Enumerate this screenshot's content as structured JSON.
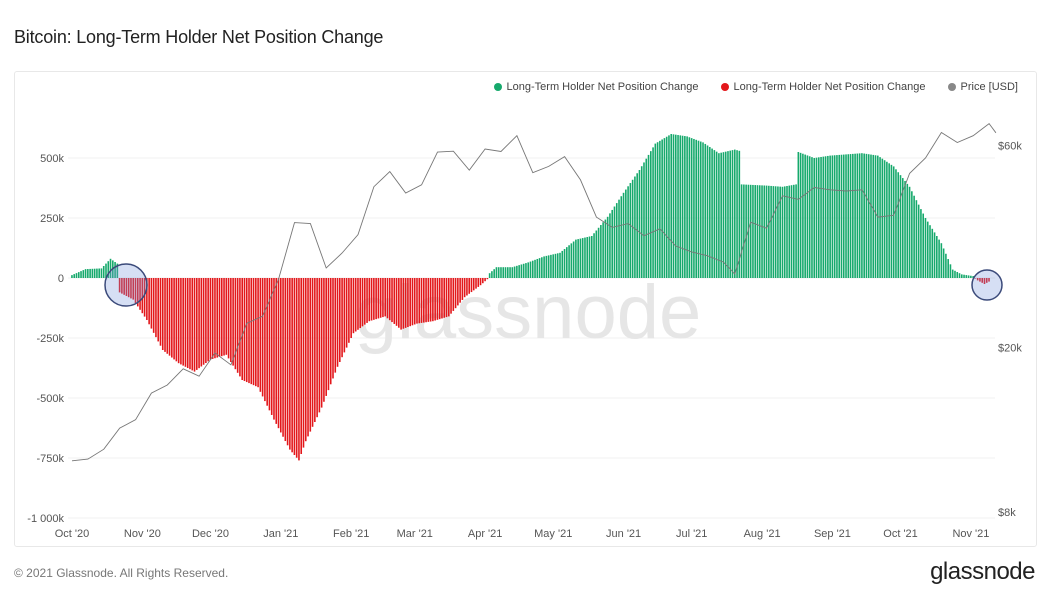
{
  "title": "Bitcoin: Long-Term Holder Net Position Change",
  "legend": [
    {
      "label": "Long-Term Holder Net Position Change",
      "color": "#16a96c"
    },
    {
      "label": "Long-Term Holder Net Position Change",
      "color": "#e3171b"
    },
    {
      "label": "Price [USD]",
      "color": "#888888"
    }
  ],
  "watermark": "glassnode",
  "footer": {
    "copyright": "© 2021 Glassnode. All Rights Reserved.",
    "logo": "glassnode"
  },
  "chart_data": {
    "type": "bar",
    "title": "Bitcoin: Long-Term Holder Net Position Change",
    "left_axis": {
      "ticks": [
        500000,
        250000,
        0,
        -250000,
        -500000,
        -750000,
        -1000000
      ],
      "tick_labels": [
        "500k",
        "250k",
        "0",
        "-250k",
        "-500k",
        "-750k",
        "-1 000k"
      ],
      "range": [
        -1000000,
        550000
      ]
    },
    "right_axis": {
      "scale": "log",
      "ticks": [
        60000,
        20000,
        8000
      ],
      "tick_labels": [
        "$60k",
        "$20k",
        "$8k"
      ]
    },
    "x_axis": {
      "ticks": [
        "2020-10-01",
        "2020-11-01",
        "2020-12-01",
        "2021-01-01",
        "2021-02-01",
        "2021-03-01",
        "2021-04-01",
        "2021-05-01",
        "2021-06-01",
        "2021-07-01",
        "2021-08-01",
        "2021-09-01",
        "2021-10-01",
        "2021-11-01"
      ],
      "tick_labels": [
        "Oct '20",
        "Nov '20",
        "Dec '20",
        "Jan '21",
        "Feb '21",
        "Mar '21",
        "Apr '21",
        "May '21",
        "Jun '21",
        "Jul '21",
        "Aug '21",
        "Sep '21",
        "Oct '21",
        "Nov '21"
      ]
    },
    "grid": true,
    "legend_position": "top-right",
    "positive_color": "#16a96c",
    "negative_color": "#e3171b",
    "series": [
      {
        "name": "Long-Term Holder Net Position Change",
        "type": "bar",
        "points": [
          [
            "2020-10-01",
            12000
          ],
          [
            "2020-10-07",
            37000
          ],
          [
            "2020-10-14",
            40000
          ],
          [
            "2020-10-18",
            80000
          ],
          [
            "2020-10-21",
            60000
          ],
          [
            "2020-10-22",
            -60000
          ],
          [
            "2020-10-28",
            -90000
          ],
          [
            "2020-11-03",
            -175000
          ],
          [
            "2020-11-10",
            -300000
          ],
          [
            "2020-11-17",
            -355000
          ],
          [
            "2020-11-24",
            -390000
          ],
          [
            "2020-12-01",
            -340000
          ],
          [
            "2020-12-08",
            -320000
          ],
          [
            "2020-12-15",
            -425000
          ],
          [
            "2020-12-22",
            -455000
          ],
          [
            "2020-12-29",
            -590000
          ],
          [
            "2021-01-05",
            -715000
          ],
          [
            "2021-01-09",
            -760000
          ],
          [
            "2021-01-12",
            -680000
          ],
          [
            "2021-01-19",
            -540000
          ],
          [
            "2021-01-26",
            -370000
          ],
          [
            "2021-02-02",
            -230000
          ],
          [
            "2021-02-09",
            -180000
          ],
          [
            "2021-02-16",
            -160000
          ],
          [
            "2021-02-23",
            -215000
          ],
          [
            "2021-03-02",
            -190000
          ],
          [
            "2021-03-09",
            -180000
          ],
          [
            "2021-03-16",
            -160000
          ],
          [
            "2021-03-23",
            -80000
          ],
          [
            "2021-03-30",
            -30000
          ],
          [
            "2021-04-02",
            -5000
          ],
          [
            "2021-04-03",
            20000
          ],
          [
            "2021-04-06",
            45000
          ],
          [
            "2021-04-13",
            45000
          ],
          [
            "2021-04-20",
            65000
          ],
          [
            "2021-04-27",
            90000
          ],
          [
            "2021-05-04",
            105000
          ],
          [
            "2021-05-11",
            160000
          ],
          [
            "2021-05-18",
            175000
          ],
          [
            "2021-05-25",
            255000
          ],
          [
            "2021-06-01",
            355000
          ],
          [
            "2021-06-08",
            450000
          ],
          [
            "2021-06-15",
            560000
          ],
          [
            "2021-06-22",
            600000
          ],
          [
            "2021-06-29",
            590000
          ],
          [
            "2021-07-06",
            565000
          ],
          [
            "2021-07-13",
            520000
          ],
          [
            "2021-07-20",
            535000
          ],
          [
            "2021-07-22",
            530000
          ],
          [
            "2021-07-23",
            390000
          ],
          [
            "2021-08-03",
            385000
          ],
          [
            "2021-08-10",
            380000
          ],
          [
            "2021-08-16",
            390000
          ],
          [
            "2021-08-17",
            525000
          ],
          [
            "2021-08-24",
            500000
          ],
          [
            "2021-08-31",
            510000
          ],
          [
            "2021-09-07",
            515000
          ],
          [
            "2021-09-14",
            520000
          ],
          [
            "2021-09-21",
            510000
          ],
          [
            "2021-09-28",
            465000
          ],
          [
            "2021-10-05",
            380000
          ],
          [
            "2021-10-12",
            250000
          ],
          [
            "2021-10-19",
            145000
          ],
          [
            "2021-10-24",
            35000
          ],
          [
            "2021-10-28",
            15000
          ],
          [
            "2021-11-02",
            8000
          ],
          [
            "2021-11-04",
            -10000
          ],
          [
            "2021-11-07",
            -25000
          ],
          [
            "2021-11-09",
            -15000
          ]
        ]
      },
      {
        "name": "Price [USD]",
        "type": "line",
        "points": [
          [
            "2020-10-01",
            10800
          ],
          [
            "2020-10-08",
            10900
          ],
          [
            "2020-10-15",
            11500
          ],
          [
            "2020-10-22",
            12900
          ],
          [
            "2020-10-29",
            13500
          ],
          [
            "2020-11-05",
            15600
          ],
          [
            "2020-11-12",
            16300
          ],
          [
            "2020-11-19",
            17800
          ],
          [
            "2020-11-26",
            17100
          ],
          [
            "2020-12-03",
            19400
          ],
          [
            "2020-12-10",
            18200
          ],
          [
            "2020-12-17",
            22800
          ],
          [
            "2020-12-24",
            23700
          ],
          [
            "2020-12-31",
            29000
          ],
          [
            "2021-01-07",
            39400
          ],
          [
            "2021-01-14",
            39200
          ],
          [
            "2021-01-21",
            30800
          ],
          [
            "2021-01-28",
            33400
          ],
          [
            "2021-02-04",
            36900
          ],
          [
            "2021-02-11",
            47900
          ],
          [
            "2021-02-18",
            52000
          ],
          [
            "2021-02-25",
            46300
          ],
          [
            "2021-03-04",
            48400
          ],
          [
            "2021-03-11",
            57800
          ],
          [
            "2021-03-18",
            58100
          ],
          [
            "2021-03-25",
            52400
          ],
          [
            "2021-04-01",
            58800
          ],
          [
            "2021-04-08",
            58000
          ],
          [
            "2021-04-15",
            63200
          ],
          [
            "2021-04-22",
            51700
          ],
          [
            "2021-04-29",
            53500
          ],
          [
            "2021-05-06",
            56400
          ],
          [
            "2021-05-13",
            49700
          ],
          [
            "2021-05-20",
            40600
          ],
          [
            "2021-05-27",
            38400
          ],
          [
            "2021-06-03",
            39200
          ],
          [
            "2021-06-10",
            36700
          ],
          [
            "2021-06-17",
            38100
          ],
          [
            "2021-06-24",
            34700
          ],
          [
            "2021-07-01",
            33600
          ],
          [
            "2021-07-08",
            32900
          ],
          [
            "2021-07-15",
            31800
          ],
          [
            "2021-07-20",
            29800
          ],
          [
            "2021-07-27",
            39500
          ],
          [
            "2021-08-03",
            38200
          ],
          [
            "2021-08-10",
            45600
          ],
          [
            "2021-08-17",
            44700
          ],
          [
            "2021-08-24",
            47700
          ],
          [
            "2021-08-31",
            47100
          ],
          [
            "2021-09-07",
            46800
          ],
          [
            "2021-09-14",
            47100
          ],
          [
            "2021-09-21",
            40600
          ],
          [
            "2021-09-28",
            41000
          ],
          [
            "2021-10-05",
            51500
          ],
          [
            "2021-10-12",
            56000
          ],
          [
            "2021-10-19",
            64300
          ],
          [
            "2021-10-26",
            60900
          ],
          [
            "2021-11-02",
            63200
          ],
          [
            "2021-11-09",
            67500
          ],
          [
            "2021-11-12",
            64200
          ]
        ]
      }
    ]
  }
}
